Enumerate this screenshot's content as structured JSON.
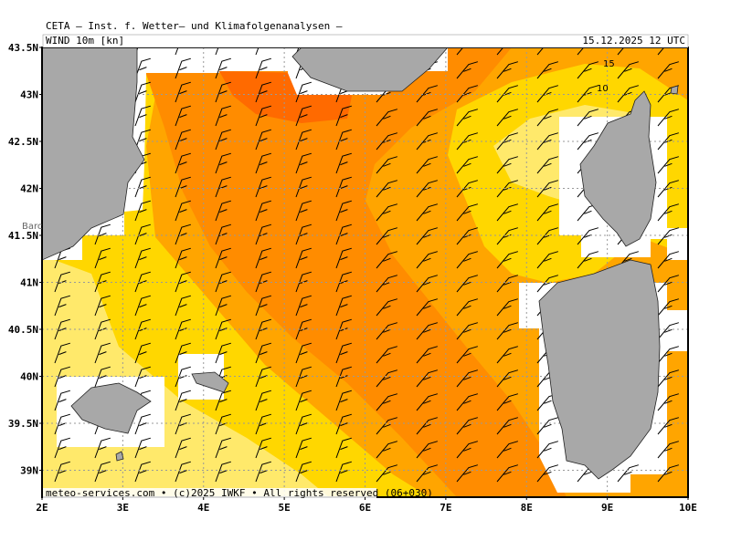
{
  "header": {
    "title": "CETA – Inst. f. Wetter– und Klimafolgenanalysen –",
    "field": "WIND 10m [kn]",
    "time": "15.12.2025 12 UTC"
  },
  "axes": {
    "lat_labels": [
      "43.5N",
      "43N",
      "42.5N",
      "42N",
      "41.5N",
      "41N",
      "40.5N",
      "40N",
      "39.5N",
      "39N"
    ],
    "lon_labels": [
      "2E",
      "3E",
      "4E",
      "5E",
      "6E",
      "7E",
      "8E",
      "9E",
      "10E"
    ]
  },
  "contour_labels": [
    "15",
    "10"
  ],
  "place_label": "Barc",
  "footer": "meteo-services.com • (c)2025 IWKF • All rights reserved (06+030)"
}
